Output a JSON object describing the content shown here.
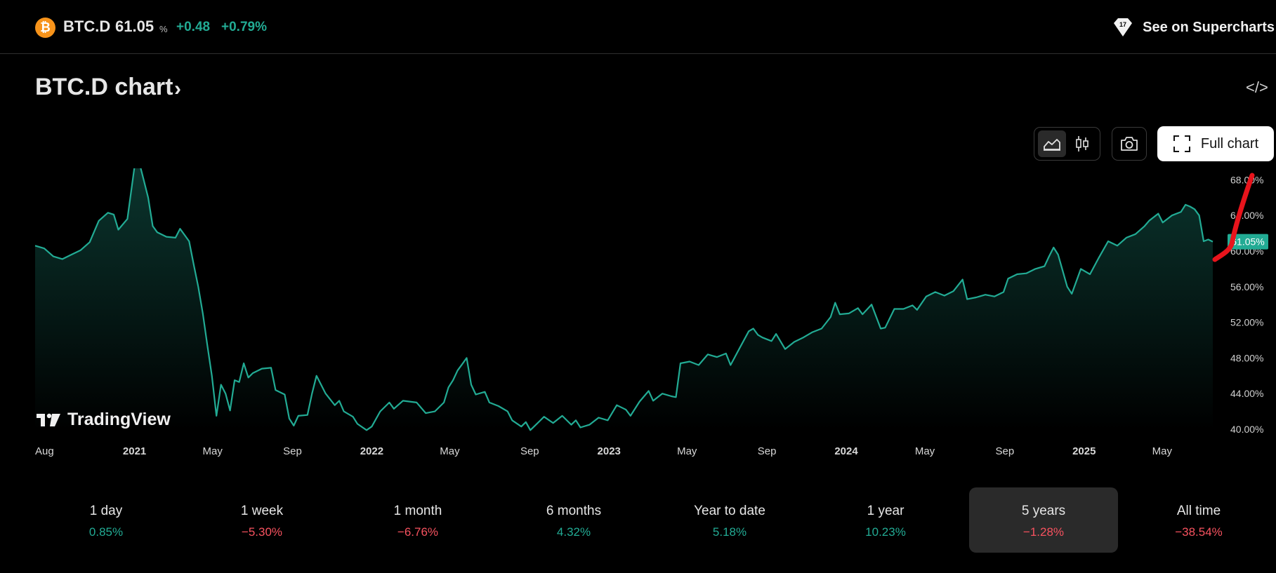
{
  "header": {
    "coin_glyph": "₿",
    "symbol": "BTC.D",
    "price": "61.05",
    "unit": "%",
    "change": "+0.48",
    "change_pct": "+0.79%",
    "supercharts_label": "See on Supercharts"
  },
  "title": {
    "text": "BTC.D chart",
    "chevron": "›"
  },
  "embed_label": "</>",
  "toolbar": {
    "active_view": "area",
    "full_chart_label": "Full chart",
    "icons": [
      "area-chart-icon",
      "candles-icon",
      "camera-icon",
      "fullscreen-icon"
    ]
  },
  "brand": {
    "name": "TradingView"
  },
  "colors": {
    "line": "#22ab94",
    "positive": "#22ab94",
    "negative": "#f7525f",
    "annotation": "#e8141c",
    "coin": "#f7931a"
  },
  "chart_data": {
    "type": "area",
    "x_axis": "date",
    "y_axis_side": "right",
    "ylim": [
      40,
      68.5
    ],
    "y_ticks": [
      "40.00%",
      "44.00%",
      "48.00%",
      "52.00%",
      "56.00%",
      "60.00%",
      "64.00%",
      "68.00%"
    ],
    "x_ticks": [
      {
        "label": "Aug",
        "date": "2020-08-01",
        "bold": false
      },
      {
        "label": "2021",
        "date": "2021-01-01",
        "bold": true
      },
      {
        "label": "May",
        "date": "2021-05-01",
        "bold": false
      },
      {
        "label": "Sep",
        "date": "2021-09-01",
        "bold": false
      },
      {
        "label": "2022",
        "date": "2022-01-01",
        "bold": true
      },
      {
        "label": "May",
        "date": "2022-05-01",
        "bold": false
      },
      {
        "label": "Sep",
        "date": "2022-09-01",
        "bold": false
      },
      {
        "label": "2023",
        "date": "2023-01-01",
        "bold": true
      },
      {
        "label": "May",
        "date": "2023-05-01",
        "bold": false
      },
      {
        "label": "Sep",
        "date": "2023-09-01",
        "bold": false
      },
      {
        "label": "2024",
        "date": "2024-01-01",
        "bold": true
      },
      {
        "label": "May",
        "date": "2024-05-01",
        "bold": false
      },
      {
        "label": "Sep",
        "date": "2024-09-01",
        "bold": false
      },
      {
        "label": "2025",
        "date": "2025-01-01",
        "bold": true
      },
      {
        "label": "May",
        "date": "2025-05-01",
        "bold": false
      }
    ],
    "x_range": [
      "2020-08-01",
      "2025-07-18"
    ],
    "last_value_label": "61.05%",
    "last_value": 61.05,
    "grid": false,
    "series": [
      {
        "points": [
          [
            "2020-08-01",
            60.6
          ],
          [
            "2020-08-15",
            60.3
          ],
          [
            "2020-08-29",
            59.4
          ],
          [
            "2020-09-12",
            59.1
          ],
          [
            "2020-09-26",
            59.6
          ],
          [
            "2020-10-10",
            60.1
          ],
          [
            "2020-10-24",
            61.0
          ],
          [
            "2020-11-07",
            63.4
          ],
          [
            "2020-11-21",
            64.3
          ],
          [
            "2020-11-30",
            64.1
          ],
          [
            "2020-12-07",
            62.4
          ],
          [
            "2020-12-21",
            63.6
          ],
          [
            "2021-01-01",
            69.5
          ],
          [
            "2021-01-08",
            70.0
          ],
          [
            "2021-01-15",
            68.0
          ],
          [
            "2021-01-22",
            66.0
          ],
          [
            "2021-01-29",
            62.8
          ],
          [
            "2021-02-05",
            62.1
          ],
          [
            "2021-02-19",
            61.6
          ],
          [
            "2021-03-05",
            61.5
          ],
          [
            "2021-03-12",
            62.5
          ],
          [
            "2021-03-19",
            61.8
          ],
          [
            "2021-03-26",
            61.1
          ],
          [
            "2021-04-02",
            58.5
          ],
          [
            "2021-04-09",
            56.0
          ],
          [
            "2021-04-16",
            53.0
          ],
          [
            "2021-04-23",
            49.4
          ],
          [
            "2021-04-30",
            46.0
          ],
          [
            "2021-05-07",
            41.5
          ],
          [
            "2021-05-14",
            45.0
          ],
          [
            "2021-05-21",
            44.0
          ],
          [
            "2021-05-28",
            42.1
          ],
          [
            "2021-06-04",
            45.5
          ],
          [
            "2021-06-11",
            45.3
          ],
          [
            "2021-06-18",
            47.4
          ],
          [
            "2021-06-25",
            45.8
          ],
          [
            "2021-07-02",
            46.3
          ],
          [
            "2021-07-16",
            46.8
          ],
          [
            "2021-07-30",
            46.9
          ],
          [
            "2021-08-06",
            44.4
          ],
          [
            "2021-08-20",
            43.9
          ],
          [
            "2021-08-27",
            41.2
          ],
          [
            "2021-09-03",
            40.4
          ],
          [
            "2021-09-10",
            41.5
          ],
          [
            "2021-09-24",
            41.6
          ],
          [
            "2021-10-01",
            44.0
          ],
          [
            "2021-10-08",
            46.0
          ],
          [
            "2021-10-22",
            44.0
          ],
          [
            "2021-11-05",
            42.7
          ],
          [
            "2021-11-12",
            43.2
          ],
          [
            "2021-11-19",
            42.0
          ],
          [
            "2021-12-03",
            41.4
          ],
          [
            "2021-12-10",
            40.6
          ],
          [
            "2021-12-24",
            39.9
          ],
          [
            "2022-01-01",
            40.3
          ],
          [
            "2022-01-14",
            42.0
          ],
          [
            "2022-01-28",
            43.0
          ],
          [
            "2022-02-04",
            42.3
          ],
          [
            "2022-02-18",
            43.2
          ],
          [
            "2022-03-11",
            43.0
          ],
          [
            "2022-03-25",
            41.8
          ],
          [
            "2022-04-08",
            42.0
          ],
          [
            "2022-04-22",
            43.0
          ],
          [
            "2022-04-29",
            44.7
          ],
          [
            "2022-05-06",
            45.5
          ],
          [
            "2022-05-13",
            46.6
          ],
          [
            "2022-05-20",
            47.3
          ],
          [
            "2022-05-27",
            48.0
          ],
          [
            "2022-06-03",
            45.0
          ],
          [
            "2022-06-10",
            43.9
          ],
          [
            "2022-06-24",
            44.2
          ],
          [
            "2022-07-01",
            43.0
          ],
          [
            "2022-07-15",
            42.6
          ],
          [
            "2022-07-29",
            42.0
          ],
          [
            "2022-08-05",
            41.0
          ],
          [
            "2022-08-19",
            40.3
          ],
          [
            "2022-08-26",
            40.8
          ],
          [
            "2022-09-02",
            39.9
          ],
          [
            "2022-09-16",
            40.9
          ],
          [
            "2022-09-23",
            41.4
          ],
          [
            "2022-10-07",
            40.7
          ],
          [
            "2022-10-21",
            41.5
          ],
          [
            "2022-11-04",
            40.5
          ],
          [
            "2022-11-11",
            41.0
          ],
          [
            "2022-11-18",
            40.2
          ],
          [
            "2022-12-02",
            40.5
          ],
          [
            "2022-12-16",
            41.3
          ],
          [
            "2022-12-30",
            41.0
          ],
          [
            "2023-01-13",
            42.7
          ],
          [
            "2023-01-27",
            42.2
          ],
          [
            "2023-02-03",
            41.5
          ],
          [
            "2023-02-17",
            43.1
          ],
          [
            "2023-03-03",
            44.3
          ],
          [
            "2023-03-10",
            43.2
          ],
          [
            "2023-03-24",
            44.0
          ],
          [
            "2023-04-07",
            43.7
          ],
          [
            "2023-04-14",
            43.6
          ],
          [
            "2023-04-21",
            47.4
          ],
          [
            "2023-05-05",
            47.6
          ],
          [
            "2023-05-19",
            47.2
          ],
          [
            "2023-06-02",
            48.4
          ],
          [
            "2023-06-16",
            48.1
          ],
          [
            "2023-06-30",
            48.5
          ],
          [
            "2023-07-07",
            47.2
          ],
          [
            "2023-07-21",
            49.1
          ],
          [
            "2023-08-04",
            51.0
          ],
          [
            "2023-08-11",
            51.3
          ],
          [
            "2023-08-18",
            50.6
          ],
          [
            "2023-08-25",
            50.3
          ],
          [
            "2023-09-08",
            49.9
          ],
          [
            "2023-09-15",
            50.7
          ],
          [
            "2023-09-29",
            49.0
          ],
          [
            "2023-10-13",
            49.8
          ],
          [
            "2023-10-27",
            50.3
          ],
          [
            "2023-11-10",
            50.9
          ],
          [
            "2023-11-24",
            51.3
          ],
          [
            "2023-12-08",
            52.6
          ],
          [
            "2023-12-15",
            54.2
          ],
          [
            "2023-12-22",
            52.9
          ],
          [
            "2024-01-05",
            53.0
          ],
          [
            "2024-01-19",
            53.6
          ],
          [
            "2024-01-26",
            52.9
          ],
          [
            "2024-02-09",
            54.0
          ],
          [
            "2024-02-23",
            51.3
          ],
          [
            "2024-03-01",
            51.4
          ],
          [
            "2024-03-15",
            53.5
          ],
          [
            "2024-03-29",
            53.5
          ],
          [
            "2024-04-12",
            53.9
          ],
          [
            "2024-04-19",
            53.4
          ],
          [
            "2024-05-03",
            54.9
          ],
          [
            "2024-05-17",
            55.4
          ],
          [
            "2024-05-31",
            55.0
          ],
          [
            "2024-06-14",
            55.5
          ],
          [
            "2024-06-28",
            56.8
          ],
          [
            "2024-07-05",
            54.6
          ],
          [
            "2024-07-19",
            54.8
          ],
          [
            "2024-08-02",
            55.1
          ],
          [
            "2024-08-16",
            54.9
          ],
          [
            "2024-08-30",
            55.4
          ],
          [
            "2024-09-06",
            56.9
          ],
          [
            "2024-09-20",
            57.4
          ],
          [
            "2024-10-04",
            57.5
          ],
          [
            "2024-10-18",
            58.0
          ],
          [
            "2024-11-01",
            58.3
          ],
          [
            "2024-11-08",
            59.4
          ],
          [
            "2024-11-15",
            60.4
          ],
          [
            "2024-11-22",
            59.6
          ],
          [
            "2024-12-06",
            56.0
          ],
          [
            "2024-12-13",
            55.2
          ],
          [
            "2024-12-27",
            58.0
          ],
          [
            "2025-01-10",
            57.4
          ],
          [
            "2025-01-24",
            59.3
          ],
          [
            "2025-02-07",
            61.1
          ],
          [
            "2025-02-21",
            60.6
          ],
          [
            "2025-03-07",
            61.5
          ],
          [
            "2025-03-21",
            61.9
          ],
          [
            "2025-04-04",
            62.8
          ],
          [
            "2025-04-11",
            63.4
          ],
          [
            "2025-04-25",
            64.2
          ],
          [
            "2025-05-02",
            63.2
          ],
          [
            "2025-05-16",
            64.0
          ],
          [
            "2025-05-30",
            64.4
          ],
          [
            "2025-06-06",
            65.2
          ],
          [
            "2025-06-13",
            65.0
          ],
          [
            "2025-06-20",
            64.7
          ],
          [
            "2025-06-27",
            64.0
          ],
          [
            "2025-07-04",
            61.1
          ],
          [
            "2025-07-11",
            61.3
          ],
          [
            "2025-07-18",
            61.05
          ]
        ]
      }
    ]
  },
  "periods": [
    {
      "label": "1 day",
      "value": "0.85%",
      "trend": "positive",
      "selected": false
    },
    {
      "label": "1 week",
      "value": "−5.30%",
      "trend": "negative",
      "selected": false
    },
    {
      "label": "1 month",
      "value": "−6.76%",
      "trend": "negative",
      "selected": false
    },
    {
      "label": "6 months",
      "value": "4.32%",
      "trend": "positive",
      "selected": false
    },
    {
      "label": "Year to date",
      "value": "5.18%",
      "trend": "positive",
      "selected": false
    },
    {
      "label": "1 year",
      "value": "10.23%",
      "trend": "positive",
      "selected": false
    },
    {
      "label": "5 years",
      "value": "−1.28%",
      "trend": "negative",
      "selected": true
    },
    {
      "label": "All time",
      "value": "−38.54%",
      "trend": "negative",
      "selected": false
    }
  ]
}
